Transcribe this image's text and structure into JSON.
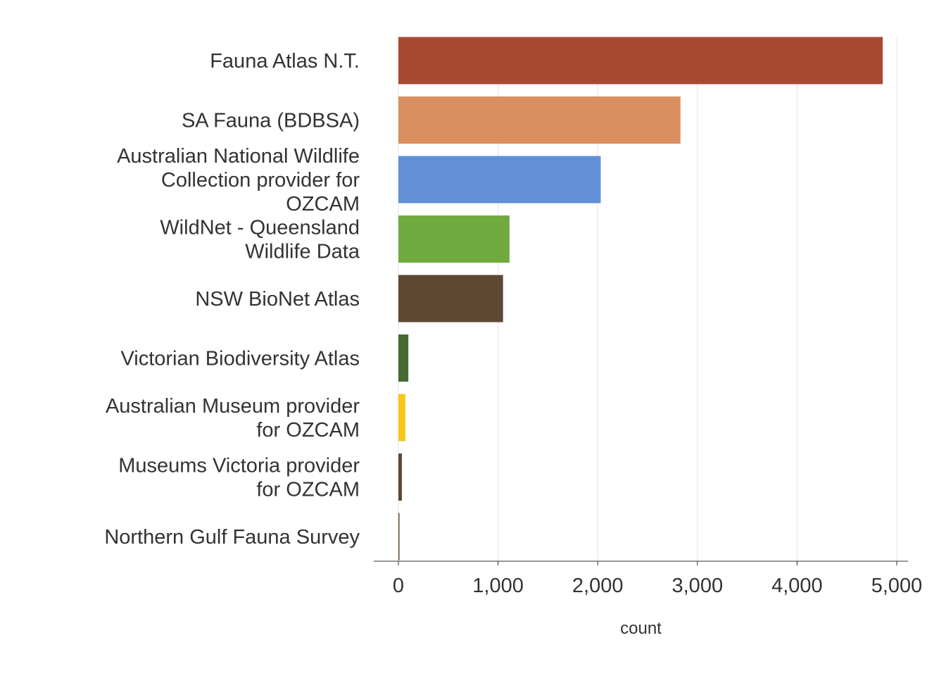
{
  "chart_data": {
    "type": "bar",
    "orientation": "horizontal",
    "categories": [
      "Fauna Atlas N.T.",
      "SA Fauna (BDBSA)",
      "Australian National Wildlife Collection provider for OZCAM",
      "WildNet - Queensland Wildlife Data",
      "NSW BioNet Atlas",
      "Victorian Biodiversity Atlas",
      "Australian Museum provider for OZCAM",
      "Museums Victoria provider for OZCAM",
      "Northern Gulf Fauna Survey"
    ],
    "category_lines": [
      [
        "Fauna Atlas N.T."
      ],
      [
        "SA Fauna (BDBSA)"
      ],
      [
        "Australian National Wildlife",
        "Collection provider for",
        "OZCAM"
      ],
      [
        "WildNet - Queensland",
        "Wildlife Data"
      ],
      [
        "NSW BioNet Atlas"
      ],
      [
        "Victorian Biodiversity Atlas"
      ],
      [
        "Australian Museum provider",
        "for OZCAM"
      ],
      [
        "Museums Victoria provider",
        "for OZCAM"
      ],
      [
        "Northern Gulf Fauna Survey"
      ]
    ],
    "values": [
      4860,
      2830,
      2030,
      1115,
      1050,
      100,
      70,
      35,
      5
    ],
    "colors": [
      "#A84A32",
      "#DB8E5F",
      "#6190D8",
      "#70AA3E",
      "#5E4832",
      "#466B32",
      "#FAC51B",
      "#5E4832",
      "#5E4832"
    ],
    "xlabel": "count",
    "ylabel": "",
    "xlim": [
      -250,
      5100
    ],
    "xticks": [
      0,
      1000,
      2000,
      3000,
      4000,
      5000
    ],
    "xtick_labels": [
      "0",
      "1,000",
      "2,000",
      "3,000",
      "4,000",
      "5,000"
    ],
    "grid": "vertical major",
    "legend": "none"
  }
}
